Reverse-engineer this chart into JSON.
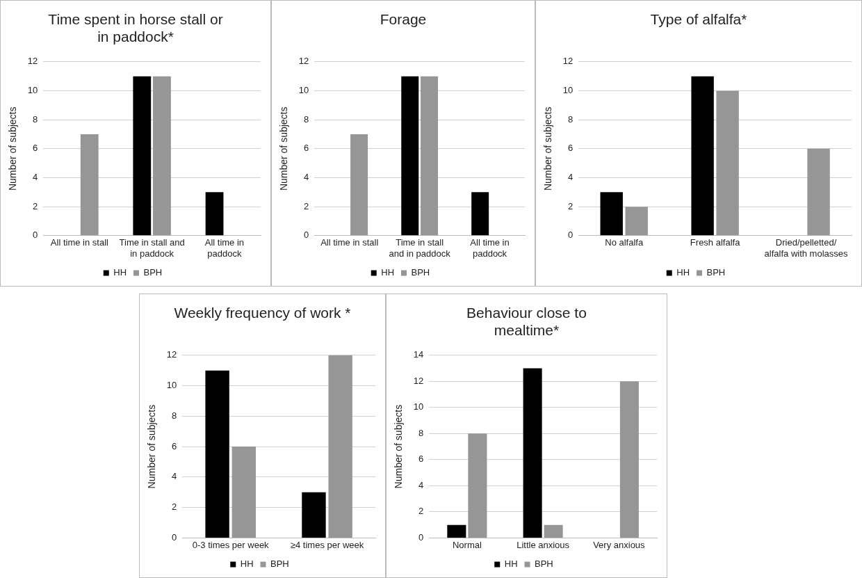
{
  "chart_data": [
    {
      "type": "bar",
      "title": "Time spent in horse stall or in paddock*",
      "categories": [
        "All time in stall",
        "Time in stall and in paddock",
        "All time in paddock"
      ],
      "ylabel": "Number of subjects",
      "ylim": [
        0,
        12
      ],
      "yticks": [
        0,
        2,
        4,
        6,
        8,
        10,
        12
      ],
      "grid": "y",
      "legend": "bottom",
      "series": [
        {
          "name": "HH",
          "color": "#000000",
          "values": [
            0,
            11,
            3
          ]
        },
        {
          "name": "BPH",
          "color": "#969696",
          "values": [
            7,
            11,
            0
          ]
        }
      ]
    },
    {
      "type": "bar",
      "title": "Forage",
      "categories": [
        "All time in stall",
        "Time in stall and in paddock",
        "All time in paddock"
      ],
      "ylabel": "Number of subjects",
      "ylim": [
        0,
        12
      ],
      "yticks": [
        0,
        2,
        4,
        6,
        8,
        10,
        12
      ],
      "grid": "y",
      "legend": "bottom",
      "series": [
        {
          "name": "HH",
          "color": "#000000",
          "values": [
            0,
            11,
            3
          ]
        },
        {
          "name": "BPH",
          "color": "#969696",
          "values": [
            7,
            11,
            0
          ]
        }
      ]
    },
    {
      "type": "bar",
      "title": "Type of alfalfa*",
      "categories": [
        "No alfalfa",
        "Fresh alfalfa",
        "Dried/pelletted/ alfalfa with molasses"
      ],
      "ylabel": "Number of subjects",
      "ylim": [
        0,
        12
      ],
      "yticks": [
        0,
        2,
        4,
        6,
        8,
        10,
        12
      ],
      "grid": "y",
      "legend": "bottom",
      "series": [
        {
          "name": "HH",
          "color": "#000000",
          "values": [
            3,
            11,
            0
          ]
        },
        {
          "name": "BPH",
          "color": "#969696",
          "values": [
            2,
            10,
            6
          ]
        }
      ]
    },
    {
      "type": "bar",
      "title": "Weekly frequency of work *",
      "categories": [
        "0-3 times per week",
        "≥4 times per week"
      ],
      "ylabel": "Number of subjects",
      "ylim": [
        0,
        12
      ],
      "yticks": [
        0,
        2,
        4,
        6,
        8,
        10,
        12
      ],
      "grid": "y",
      "legend": "bottom",
      "series": [
        {
          "name": "HH",
          "color": "#000000",
          "values": [
            11,
            3
          ]
        },
        {
          "name": "BPH",
          "color": "#969696",
          "values": [
            6,
            12
          ]
        }
      ]
    },
    {
      "type": "bar",
      "title": "Behaviour close to mealtime*",
      "categories": [
        "Normal",
        "Little anxious",
        "Very anxious"
      ],
      "ylabel": "Number of subjects",
      "ylim": [
        0,
        14
      ],
      "yticks": [
        0,
        2,
        4,
        6,
        8,
        10,
        12,
        14
      ],
      "grid": "y",
      "legend": "bottom",
      "series": [
        {
          "name": "HH",
          "color": "#000000",
          "values": [
            1,
            13,
            0
          ]
        },
        {
          "name": "BPH",
          "color": "#969696",
          "values": [
            8,
            1,
            12
          ]
        }
      ]
    }
  ]
}
